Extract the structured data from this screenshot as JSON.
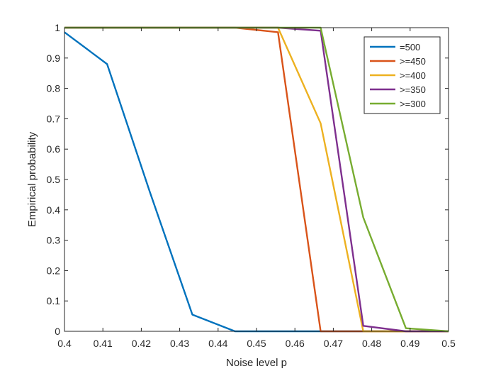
{
  "chart_data": {
    "type": "line",
    "xlabel": "Noise level p",
    "ylabel": "Empirical probability",
    "xlim": [
      0.4,
      0.5
    ],
    "ylim": [
      0,
      1
    ],
    "grid": false,
    "legend_position": "top-right",
    "x_ticks": [
      "0.4",
      "0.41",
      "0.42",
      "0.43",
      "0.44",
      "0.45",
      "0.46",
      "0.47",
      "0.48",
      "0.49",
      "0.5"
    ],
    "y_ticks": [
      "0",
      "0.1",
      "0.2",
      "0.3",
      "0.4",
      "0.5",
      "0.6",
      "0.7",
      "0.8",
      "0.9",
      "1"
    ],
    "x": [
      0.4,
      0.4111,
      0.4222,
      0.4333,
      0.4444,
      0.4556,
      0.4667,
      0.4778,
      0.4889,
      0.5
    ],
    "series": [
      {
        "name": "=500",
        "color": "#0072BD",
        "values": [
          0.985,
          0.88,
          0.46,
          0.055,
          0.0,
          0.0,
          0.0,
          0.0,
          0.0,
          0.0
        ]
      },
      {
        "name": ">=450",
        "color": "#D95319",
        "values": [
          1.0,
          1.0,
          1.0,
          1.0,
          1.0,
          0.985,
          0.0,
          0.0,
          0.0,
          0.0
        ]
      },
      {
        "name": ">=400",
        "color": "#EDB120",
        "values": [
          1.0,
          1.0,
          1.0,
          1.0,
          1.0,
          1.0,
          0.685,
          0.0,
          0.0,
          0.0
        ]
      },
      {
        "name": ">=350",
        "color": "#7E2F8E",
        "values": [
          1.0,
          1.0,
          1.0,
          1.0,
          1.0,
          1.0,
          0.99,
          0.018,
          0.0,
          0.0
        ]
      },
      {
        "name": ">=300",
        "color": "#77AC30",
        "values": [
          1.0,
          1.0,
          1.0,
          1.0,
          1.0,
          1.0,
          1.0,
          0.375,
          0.01,
          0.0
        ]
      }
    ]
  }
}
